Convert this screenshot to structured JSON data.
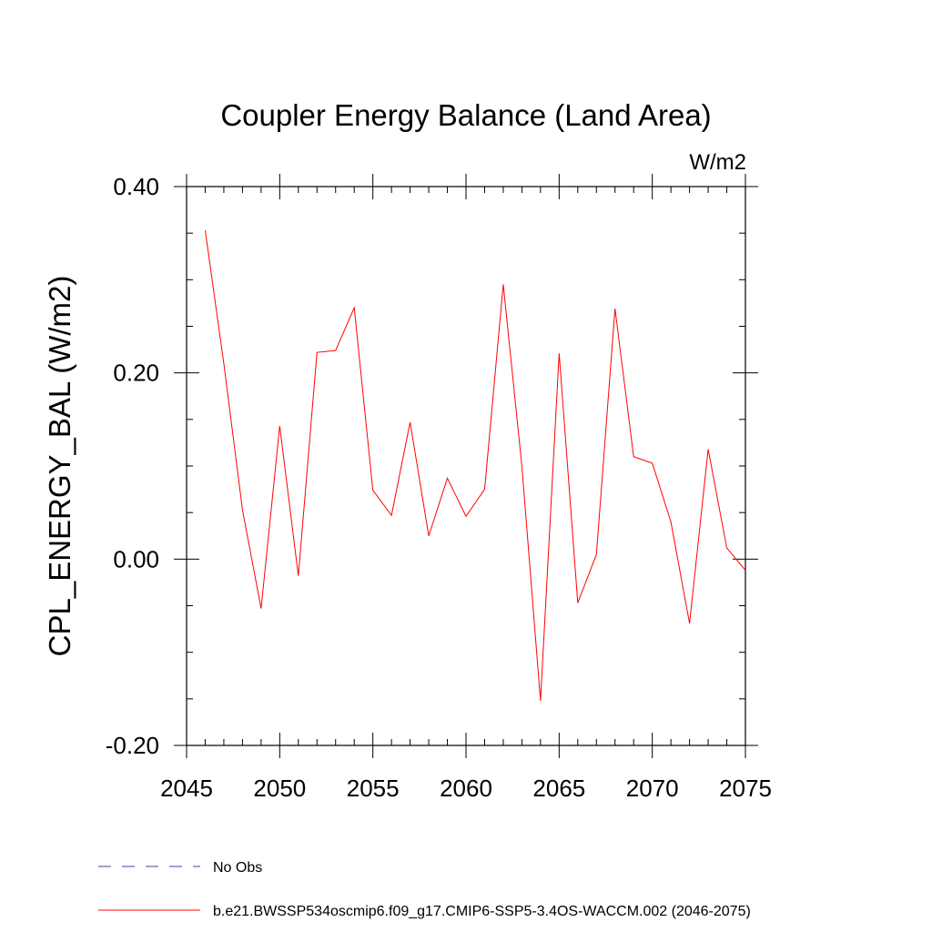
{
  "chart_data": {
    "type": "line",
    "title": "Coupler Energy Balance (Land Area)",
    "units_label": "W/m2",
    "ylabel": "CPL_ENERGY_BAL  (W/m2)",
    "xlabel": "",
    "xlim": [
      2045,
      2075
    ],
    "ylim": [
      -0.2,
      0.4
    ],
    "x_major_ticks": [
      2045,
      2050,
      2055,
      2060,
      2065,
      2070,
      2075
    ],
    "x_tick_labels": [
      "2045",
      "2050",
      "2055",
      "2060",
      "2065",
      "2070",
      "2075"
    ],
    "y_major_ticks": [
      -0.2,
      0.0,
      0.2,
      0.4
    ],
    "y_tick_labels": [
      "-0.20",
      "0.00",
      "0.20",
      "0.40"
    ],
    "y_minor_step": 0.05,
    "x_minor_step": 1,
    "series": [
      {
        "name": "b.e21.BWSSP534oscmip6.f09_g17.CMIP6-SSP5-3.4OS-WACCM.002 (2046-2075)",
        "color": "#ff0000",
        "x": [
          2046,
          2047,
          2048,
          2049,
          2050,
          2051,
          2052,
          2053,
          2054,
          2055,
          2056,
          2057,
          2058,
          2059,
          2060,
          2061,
          2062,
          2063,
          2064,
          2065,
          2066,
          2067,
          2068,
          2069,
          2070,
          2071,
          2072,
          2073,
          2074,
          2075
        ],
        "values": [
          0.353,
          0.21,
          0.053,
          -0.053,
          0.143,
          -0.018,
          0.222,
          0.224,
          0.27,
          0.074,
          0.047,
          0.147,
          0.025,
          0.087,
          0.046,
          0.075,
          0.295,
          0.1,
          -0.152,
          0.221,
          -0.047,
          0.005,
          0.269,
          0.11,
          0.103,
          0.04,
          -0.069,
          0.118,
          0.012,
          -0.012
        ]
      }
    ],
    "legend": [
      {
        "label": "No Obs",
        "style": "dashed",
        "color": "#4b3ca0"
      },
      {
        "label": "b.e21.BWSSP534oscmip6.f09_g17.CMIP6-SSP5-3.4OS-WACCM.002 (2046-2075)",
        "style": "solid",
        "color": "#ff0000"
      }
    ]
  }
}
